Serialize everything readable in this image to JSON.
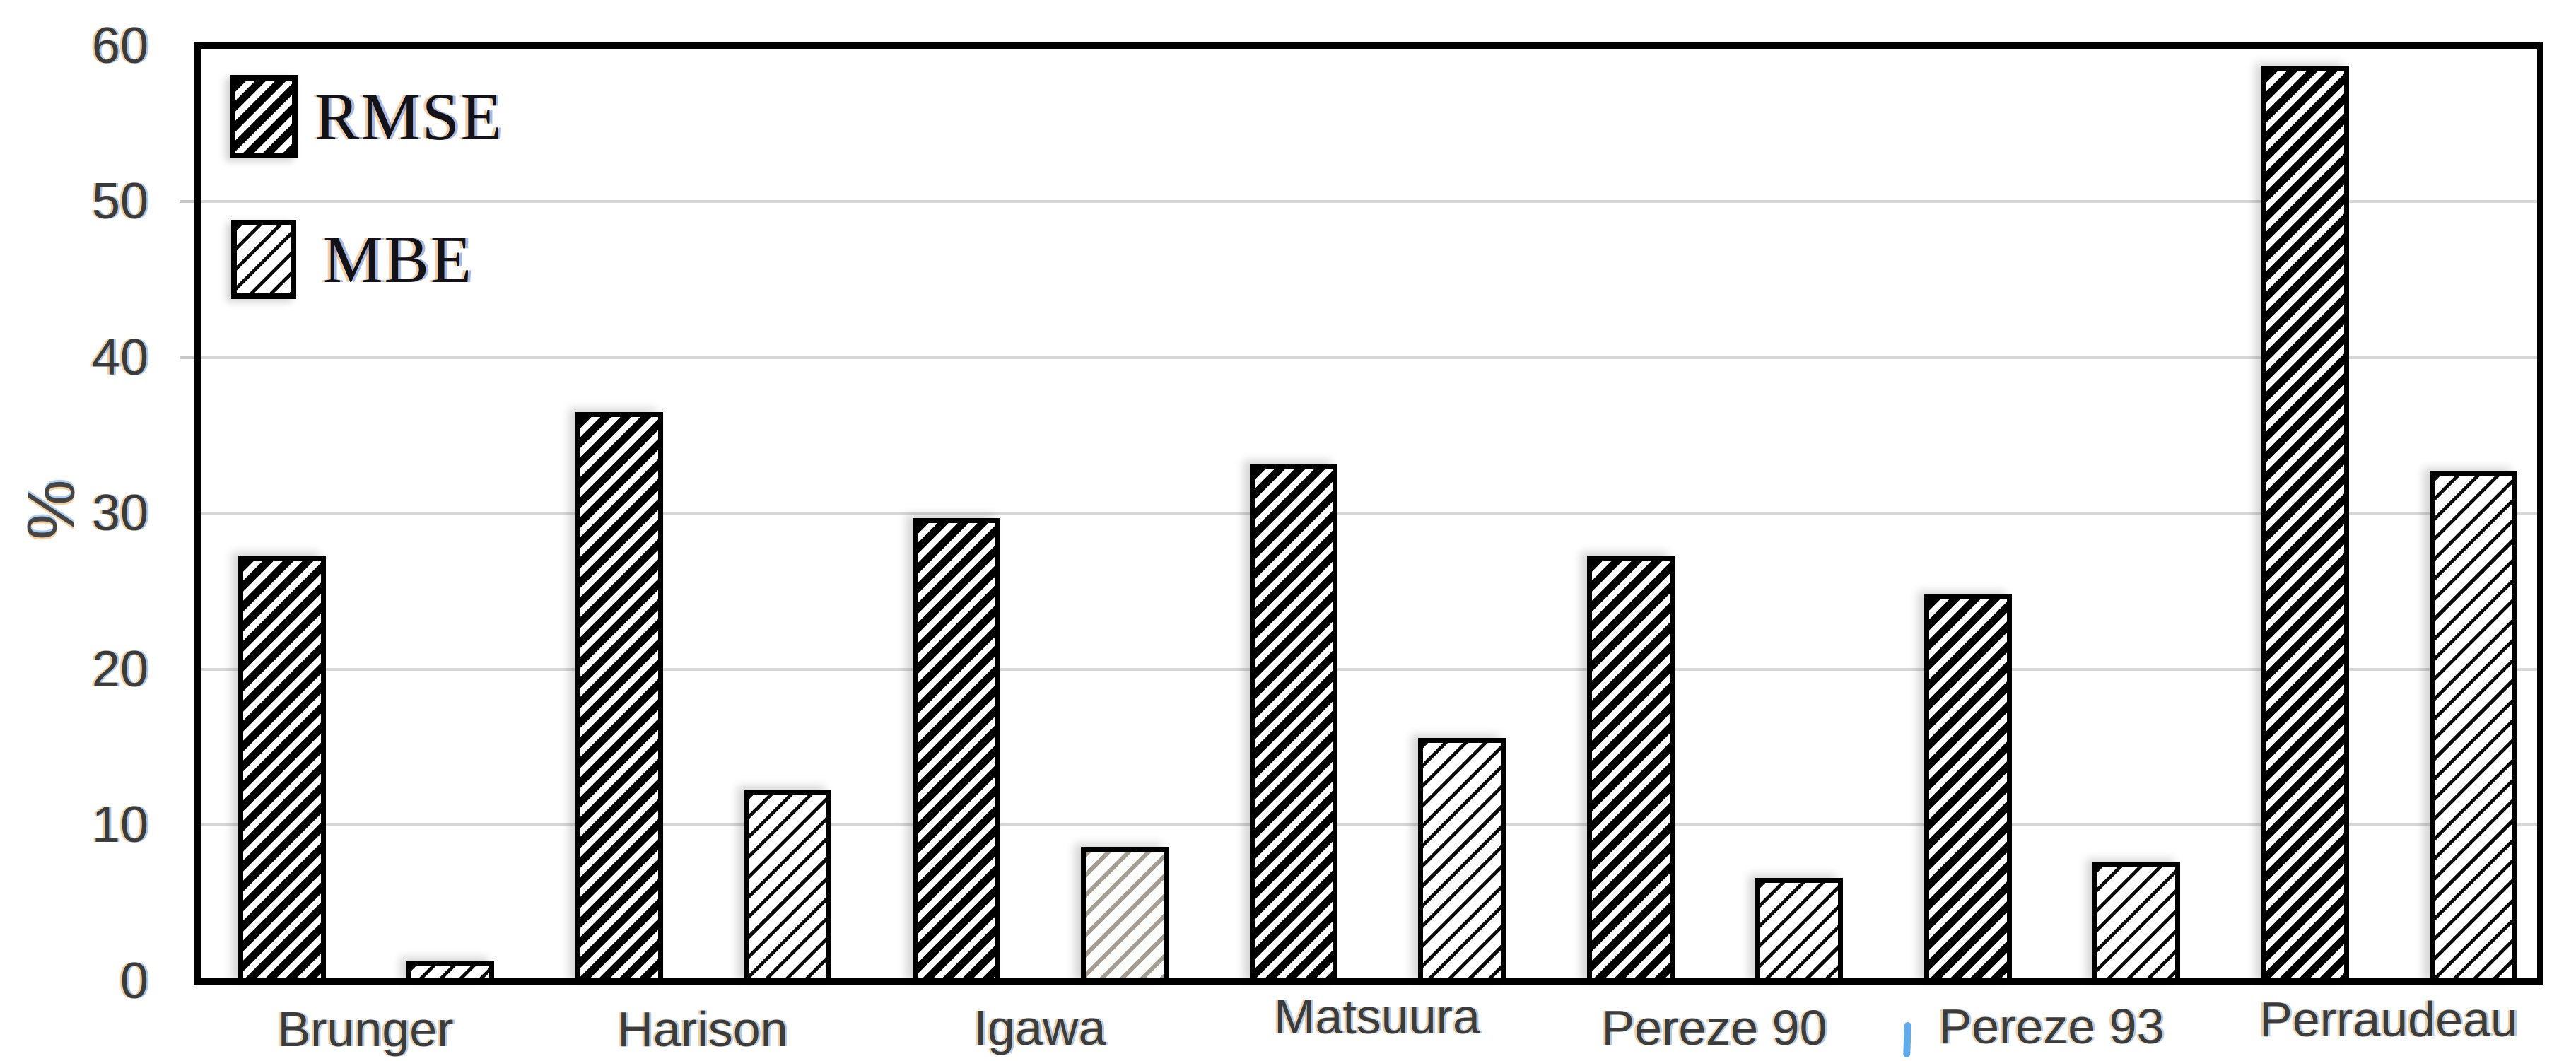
{
  "chart_data": {
    "type": "bar",
    "title": "",
    "xlabel": "",
    "ylabel": "%",
    "ylim": [
      0,
      60
    ],
    "yticks": [
      0,
      10,
      20,
      30,
      40,
      50,
      60
    ],
    "grid": "horizontal-light-gray",
    "legend_position": "top-left-inside",
    "categories": [
      "Brunger",
      "Harison",
      "Igawa",
      "Matsuura",
      "Pereze 90",
      "Pereze 93",
      "Perraudeau"
    ],
    "series": [
      {
        "name": "RMSE",
        "hatch": "dense-black-diagonal",
        "values": [
          27.3,
          36.5,
          29.7,
          33.2,
          27.3,
          24.8,
          58.7
        ]
      },
      {
        "name": "MBE",
        "hatch": "thin-black-diagonal",
        "values": [
          1.3,
          12.3,
          8.6,
          15.6,
          6.6,
          7.6,
          32.7
        ],
        "hatch_overrides": [
          {
            "category_index": 2,
            "hatch": "gray-diagonal"
          }
        ]
      }
    ],
    "colors": {
      "bar_outline": "#000000",
      "gridline": "#d7d7d7",
      "axis_frame": "#000000",
      "tick_text": "#3b3b3b",
      "legend_text": "#121218",
      "background": "#ffffff",
      "stray_mark": "#57a8ea"
    }
  },
  "legend": {
    "rmse_label": "RMSE",
    "mbe_label": "MBE"
  },
  "artifacts": {
    "stray_mark_between_pereze_labels": "|"
  }
}
